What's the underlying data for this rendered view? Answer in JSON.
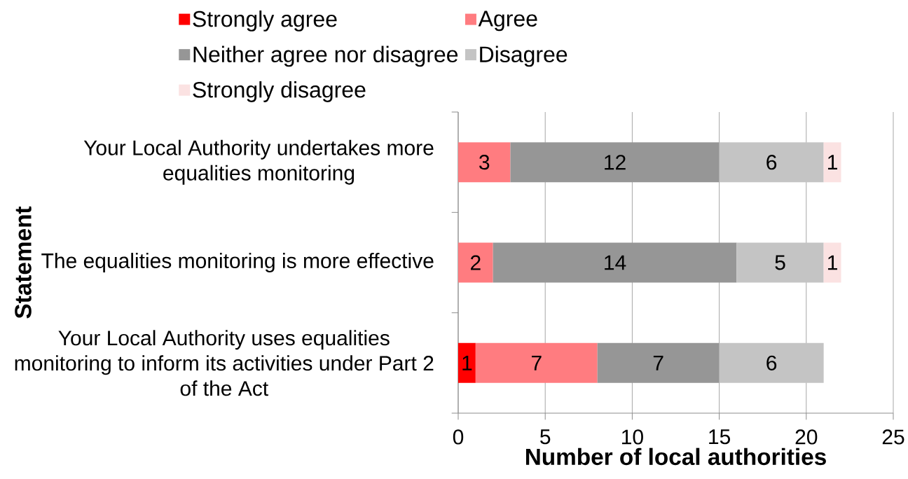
{
  "chart_data": {
    "type": "bar",
    "orientation": "horizontal",
    "stacked": true,
    "categories": [
      "Your Local Authority undertakes more equalities monitoring",
      "The equalities monitoring is more effective",
      "Your Local Authority uses equalities monitoring to inform its activities under Part 2 of the Act"
    ],
    "series": [
      {
        "name": "Strongly agree",
        "color": "#ff0000",
        "values": [
          null,
          null,
          1
        ]
      },
      {
        "name": "Agree",
        "color": "#ff7c80",
        "values": [
          3,
          2,
          7
        ]
      },
      {
        "name": "Neither agree nor disagree",
        "color": "#969696",
        "values": [
          12,
          14,
          7
        ]
      },
      {
        "name": "Disagree",
        "color": "#c4c4c4",
        "values": [
          6,
          5,
          6
        ]
      },
      {
        "name": "Strongly disagree",
        "color": "#fbe2e2",
        "values": [
          1,
          1,
          null
        ]
      }
    ],
    "xlabel": "Number of local authorities",
    "ylabel": "Statement",
    "xlim": [
      0,
      25
    ],
    "xticks": [
      0,
      5,
      10,
      15,
      20,
      25
    ],
    "grid": "x",
    "legend": "top left",
    "data_labels": true
  }
}
